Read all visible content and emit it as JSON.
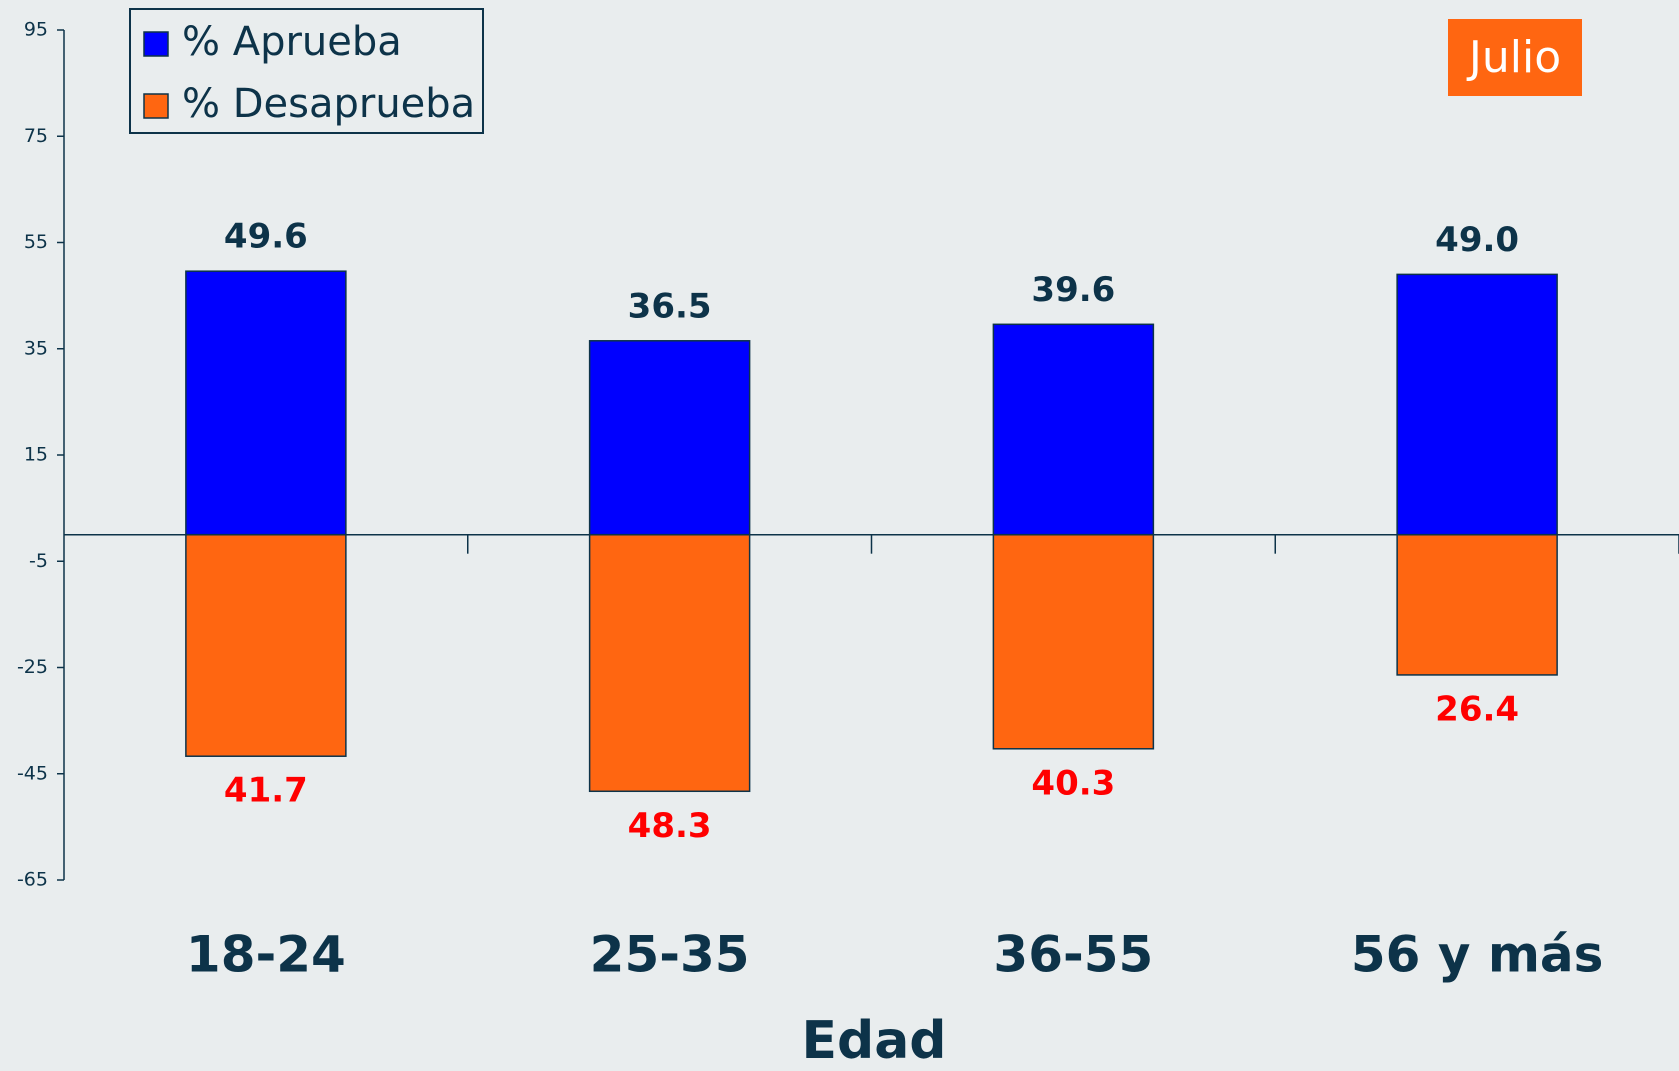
{
  "chart_data": {
    "type": "bar",
    "xlabel": "Edad",
    "annotation": "Julio",
    "categories": [
      "18-24",
      "25-35",
      "36-55",
      "56 y más"
    ],
    "series": [
      {
        "name": "% Aprueba",
        "color": "#0000ff",
        "label_color": "#0d3349",
        "values": [
          49.6,
          36.5,
          39.6,
          49.0
        ],
        "value_labels": [
          "49.6",
          "36.5",
          "39.6",
          "49.0"
        ]
      },
      {
        "name": "% Desaprueba",
        "color": "#ff6611",
        "label_color": "#ff0000",
        "values": [
          -41.7,
          -48.3,
          -40.3,
          -26.4
        ],
        "value_labels": [
          "41.7",
          "48.3",
          "40.3",
          "26.4"
        ]
      }
    ],
    "ylim": [
      -65,
      95
    ],
    "yticks": [
      95,
      75,
      55,
      35,
      15,
      -5,
      -25,
      -45,
      -65
    ],
    "grid": false,
    "legend": "upper left"
  }
}
